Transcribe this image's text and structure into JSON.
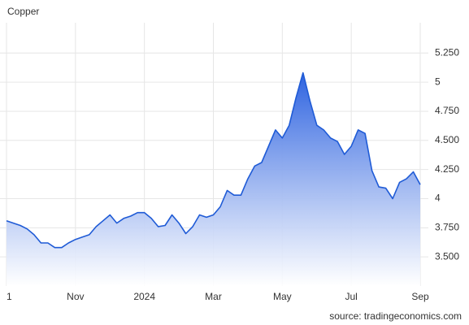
{
  "chart_data": {
    "type": "area",
    "title": "Copper",
    "source": "source: tradingeconomics.com",
    "categories": [
      "1",
      null,
      null,
      null,
      null,
      null,
      null,
      null,
      null,
      null,
      "Nov",
      null,
      null,
      null,
      null,
      null,
      null,
      null,
      null,
      null,
      "2024",
      null,
      null,
      null,
      null,
      null,
      null,
      null,
      null,
      null,
      "Mar",
      null,
      null,
      null,
      null,
      null,
      null,
      null,
      null,
      null,
      "May",
      null,
      null,
      null,
      null,
      null,
      null,
      null,
      null,
      null,
      "Jul",
      null,
      null,
      null,
      null,
      null,
      null,
      null,
      null,
      null,
      "Sep"
    ],
    "values": [
      3.81,
      3.79,
      3.77,
      3.74,
      3.69,
      3.62,
      3.62,
      3.58,
      3.58,
      3.62,
      3.65,
      3.67,
      3.69,
      3.76,
      3.81,
      3.86,
      3.79,
      3.83,
      3.85,
      3.88,
      3.88,
      3.83,
      3.76,
      3.77,
      3.86,
      3.79,
      3.7,
      3.76,
      3.86,
      3.84,
      3.86,
      3.93,
      4.07,
      4.03,
      4.03,
      4.17,
      4.28,
      4.31,
      4.45,
      4.59,
      4.52,
      4.63,
      4.87,
      5.08,
      4.84,
      4.63,
      4.59,
      4.52,
      4.49,
      4.38,
      4.45,
      4.59,
      4.56,
      4.24,
      4.1,
      4.09,
      4.0,
      4.14,
      4.17,
      4.23,
      4.12
    ],
    "color": "#1f5bd6",
    "ylim": [
      3.25,
      5.51
    ],
    "yticks": [
      {
        "value": 3.5,
        "label": "3.500"
      },
      {
        "value": 3.75,
        "label": "3.750"
      },
      4,
      {
        "value": 4.25,
        "label": "4.250"
      },
      {
        "value": 4.5,
        "label": "4.500"
      },
      {
        "value": 4.75,
        "label": "4.750"
      },
      5,
      {
        "value": 5.25,
        "label": "5.250"
      }
    ],
    "grid": true
  }
}
